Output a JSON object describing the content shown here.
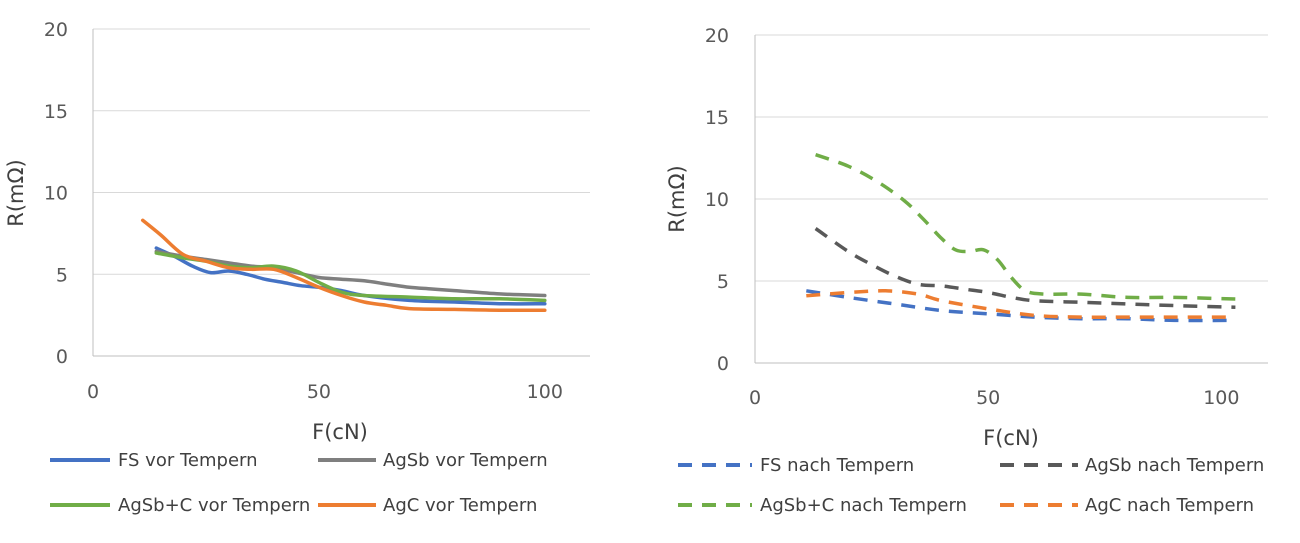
{
  "chart_data": [
    {
      "type": "line",
      "title": "",
      "xlabel": "F(cN)",
      "ylabel": "R(mΩ)",
      "xlim": [
        0,
        110
      ],
      "ylim": [
        0,
        20
      ],
      "xticks": [
        0,
        50,
        100
      ],
      "yticks": [
        0,
        5,
        10,
        15,
        20
      ],
      "grid": "horizontal",
      "legend_position": "bottom",
      "series": [
        {
          "name": "FS vor Tempern",
          "color": "#4472C4",
          "dash": "solid",
          "x": [
            14,
            18,
            22,
            26,
            30,
            34,
            38,
            42,
            46,
            50,
            55,
            60,
            70,
            80,
            90,
            100
          ],
          "y": [
            6.6,
            6.1,
            5.5,
            5.1,
            5.2,
            5.0,
            4.7,
            4.5,
            4.3,
            4.2,
            4.0,
            3.7,
            3.4,
            3.3,
            3.2,
            3.2
          ]
        },
        {
          "name": "AgSb vor Tempern",
          "color": "#7F7F7F",
          "dash": "solid",
          "x": [
            14,
            20,
            25,
            30,
            35,
            40,
            45,
            50,
            55,
            60,
            65,
            70,
            75,
            80,
            90,
            100
          ],
          "y": [
            6.4,
            6.1,
            5.9,
            5.7,
            5.5,
            5.4,
            5.1,
            4.8,
            4.7,
            4.6,
            4.4,
            4.2,
            4.1,
            4.0,
            3.8,
            3.7
          ]
        },
        {
          "name": "AgSb+C vor Tempern",
          "color": "#70AD47",
          "dash": "solid",
          "x": [
            14,
            20,
            25,
            30,
            35,
            40,
            45,
            50,
            55,
            60,
            70,
            80,
            90,
            100
          ],
          "y": [
            6.3,
            6.0,
            5.8,
            5.5,
            5.4,
            5.5,
            5.2,
            4.5,
            3.9,
            3.7,
            3.6,
            3.5,
            3.5,
            3.4
          ]
        },
        {
          "name": "AgC vor Tempern",
          "color": "#ED7D31",
          "dash": "solid",
          "x": [
            11,
            15,
            20,
            25,
            30,
            35,
            40,
            45,
            50,
            55,
            60,
            65,
            70,
            80,
            90,
            100
          ],
          "y": [
            8.3,
            7.4,
            6.2,
            5.8,
            5.4,
            5.3,
            5.3,
            4.8,
            4.2,
            3.7,
            3.3,
            3.1,
            2.9,
            2.85,
            2.8,
            2.8
          ]
        }
      ]
    },
    {
      "type": "line",
      "title": "",
      "xlabel": "F(cN)",
      "ylabel": "R(mΩ)",
      "xlim": [
        0,
        110
      ],
      "ylim": [
        0,
        20
      ],
      "xticks": [
        0,
        50,
        100
      ],
      "yticks": [
        0,
        5,
        10,
        15,
        20
      ],
      "grid": "horizontal",
      "legend_position": "bottom",
      "series": [
        {
          "name": "FS nach Tempern",
          "color": "#4472C4",
          "dash": "dashed",
          "x": [
            11,
            20,
            30,
            40,
            50,
            60,
            70,
            80,
            90,
            103
          ],
          "y": [
            4.4,
            4.0,
            3.6,
            3.2,
            3.0,
            2.8,
            2.7,
            2.7,
            2.6,
            2.6
          ]
        },
        {
          "name": "AgSb nach Tempern",
          "color": "#595959",
          "dash": "dashed",
          "x": [
            13,
            20,
            25,
            30,
            35,
            40,
            45,
            50,
            55,
            60,
            70,
            80,
            90,
            103
          ],
          "y": [
            8.2,
            6.8,
            6.0,
            5.3,
            4.8,
            4.7,
            4.5,
            4.3,
            4.0,
            3.8,
            3.7,
            3.6,
            3.5,
            3.4
          ]
        },
        {
          "name": "AgSb+C nach Tempern",
          "color": "#70AD47",
          "dash": "dashed",
          "x": [
            13,
            20,
            26,
            32,
            36,
            40,
            43,
            46,
            49,
            52,
            55,
            58,
            62,
            70,
            80,
            90,
            103
          ],
          "y": [
            12.7,
            12.0,
            11.1,
            9.9,
            8.8,
            7.6,
            6.9,
            6.8,
            6.9,
            6.3,
            5.2,
            4.4,
            4.2,
            4.2,
            4.0,
            4.0,
            3.9
          ]
        },
        {
          "name": "AgC nach Tempern",
          "color": "#ED7D31",
          "dash": "dashed",
          "x": [
            11,
            20,
            28,
            35,
            40,
            50,
            60,
            70,
            80,
            90,
            103
          ],
          "y": [
            4.1,
            4.3,
            4.4,
            4.2,
            3.8,
            3.3,
            2.9,
            2.8,
            2.8,
            2.8,
            2.8
          ]
        }
      ]
    }
  ]
}
